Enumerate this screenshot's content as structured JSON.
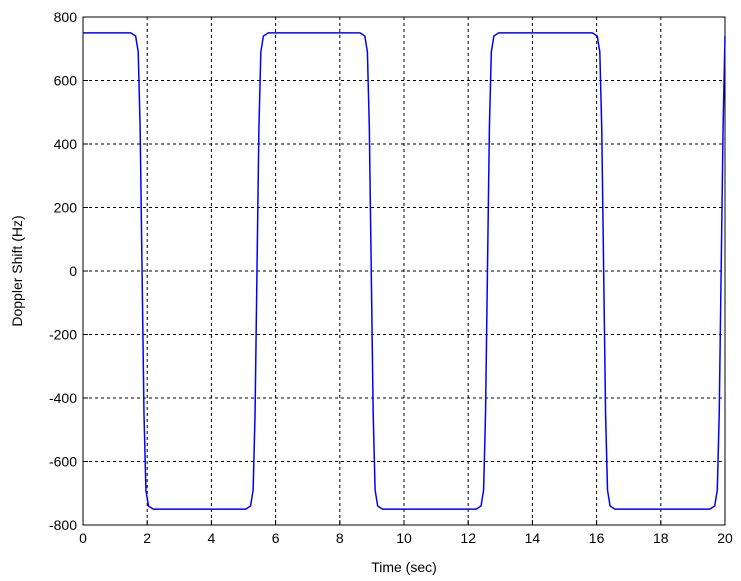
{
  "chart_data": {
    "type": "line",
    "xlabel": "Time (sec)",
    "ylabel": "Doppler Shift (Hz)",
    "x": [
      0,
      1.49,
      1.64,
      1.72,
      1.78,
      1.84,
      1.9,
      1.96,
      2.04,
      2.19,
      5.07,
      5.22,
      5.3,
      5.36,
      5.42,
      5.48,
      5.54,
      5.62,
      5.77,
      8.63,
      8.78,
      8.86,
      8.92,
      8.98,
      9.04,
      9.1,
      9.18,
      9.33,
      12.25,
      12.4,
      12.48,
      12.54,
      12.6,
      12.66,
      12.72,
      12.8,
      12.95,
      15.87,
      16.02,
      16.1,
      16.16,
      16.22,
      16.28,
      16.34,
      16.42,
      16.57,
      19.53,
      19.68,
      19.76,
      19.82,
      19.88,
      19.94,
      20
    ],
    "series": [
      {
        "name": "Doppler shift",
        "color": "#0000ff",
        "values": [
          750,
          750,
          740,
          690,
          450,
          0,
          -450,
          -690,
          -740,
          -750,
          -750,
          -740,
          -690,
          -450,
          0,
          450,
          690,
          740,
          750,
          750,
          740,
          690,
          450,
          0,
          -450,
          -690,
          -740,
          -750,
          -750,
          -740,
          -690,
          -450,
          0,
          450,
          690,
          740,
          750,
          750,
          740,
          690,
          450,
          0,
          -450,
          -690,
          -740,
          -750,
          -750,
          -740,
          -690,
          -450,
          0,
          450,
          740
        ]
      }
    ],
    "xlim": [
      0,
      20
    ],
    "xticks": [
      0,
      2,
      4,
      6,
      8,
      10,
      12,
      14,
      16,
      18,
      20
    ],
    "ylim": [
      -800,
      800
    ],
    "yticks": [
      -800,
      -600,
      -400,
      -200,
      0,
      200,
      400,
      600,
      800
    ],
    "grid": true
  }
}
